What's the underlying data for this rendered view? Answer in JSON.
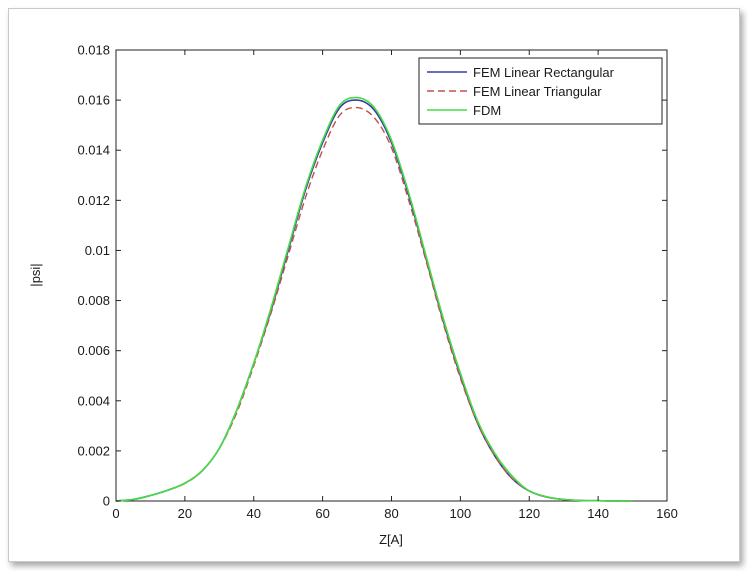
{
  "chart_data": {
    "type": "line",
    "xlabel": "Z[A]",
    "ylabel": "|psi|",
    "xlim": [
      0,
      160
    ],
    "ylim": [
      0,
      0.018
    ],
    "xticks": [
      "0",
      "20",
      "40",
      "60",
      "80",
      "100",
      "120",
      "140",
      "160"
    ],
    "yticks": [
      "0",
      "0.002",
      "0.004",
      "0.006",
      "0.008",
      "0.01",
      "0.012",
      "0.014",
      "0.016",
      "0.018"
    ],
    "grid": false,
    "legend_position": "top-right",
    "series": [
      {
        "name": "FEM Linear Rectangular",
        "color": "#3c3ca8",
        "style": "solid",
        "x": [
          0,
          5,
          10,
          15,
          20,
          25,
          30,
          35,
          40,
          45,
          50,
          55,
          60,
          65,
          70,
          75,
          80,
          85,
          90,
          95,
          100,
          105,
          110,
          115,
          120,
          125,
          130,
          135,
          140,
          145,
          150
        ],
        "y": [
          0,
          6e-05,
          0.00022,
          0.00043,
          0.00071,
          0.0012,
          0.0021,
          0.0036,
          0.0055,
          0.0076,
          0.01,
          0.0124,
          0.0143,
          0.0157,
          0.016,
          0.0156,
          0.0143,
          0.0122,
          0.0097,
          0.0072,
          0.005,
          0.0031,
          0.0018,
          0.0009,
          0.0004,
          0.00016,
          6e-05,
          2e-05,
          1e-05,
          0,
          0
        ]
      },
      {
        "name": "FEM Linear Triangular",
        "color": "#c0504d",
        "style": "dashed",
        "x": [
          0,
          5,
          10,
          15,
          20,
          25,
          30,
          35,
          40,
          45,
          50,
          55,
          60,
          65,
          70,
          75,
          80,
          85,
          90,
          95,
          100,
          105,
          110,
          115,
          120,
          125,
          130,
          135,
          140,
          145,
          150
        ],
        "y": [
          0,
          6e-05,
          0.00022,
          0.00043,
          0.0007,
          0.0012,
          0.0021,
          0.0035,
          0.0054,
          0.0075,
          0.0098,
          0.0121,
          0.014,
          0.0154,
          0.0157,
          0.0153,
          0.0141,
          0.012,
          0.0096,
          0.0071,
          0.0049,
          0.0031,
          0.0018,
          0.0009,
          0.0004,
          0.00016,
          6e-05,
          2e-05,
          1e-05,
          0,
          0
        ]
      },
      {
        "name": "FDM",
        "color": "#44dd44",
        "style": "solid",
        "x": [
          0,
          5,
          10,
          15,
          20,
          25,
          30,
          35,
          40,
          45,
          50,
          55,
          60,
          65,
          70,
          75,
          80,
          85,
          90,
          95,
          100,
          105,
          110,
          115,
          120,
          125,
          130,
          135,
          140,
          145,
          150
        ],
        "y": [
          0,
          6e-05,
          0.00022,
          0.00043,
          0.00071,
          0.0012,
          0.0021,
          0.0036,
          0.0055,
          0.0077,
          0.0101,
          0.0125,
          0.0144,
          0.0158,
          0.0161,
          0.0157,
          0.0144,
          0.0123,
          0.0098,
          0.0073,
          0.0051,
          0.0032,
          0.0019,
          0.001,
          0.0004,
          0.00017,
          6e-05,
          2e-05,
          1e-05,
          0,
          0
        ]
      }
    ]
  }
}
